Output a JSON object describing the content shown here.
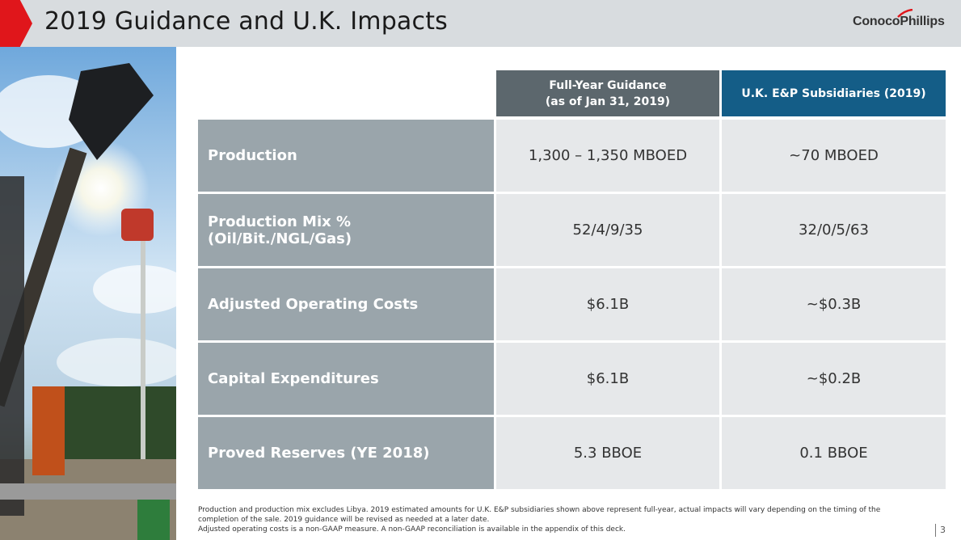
{
  "slide": {
    "title": "2019 Guidance and U.K. Impacts",
    "logo": "ConocoPhillips",
    "page_number": "3"
  },
  "table": {
    "headers": {
      "col1_line1": "Full-Year Guidance",
      "col1_line2": "(as of Jan 31, 2019)",
      "col2": "U.K. E&P Subsidiaries (2019)"
    },
    "rows": [
      {
        "label": "Production",
        "guidance": "1,300 – 1,350 MBOED",
        "uk": "~70 MBOED"
      },
      {
        "label": "Production Mix % (Oil/Bit./NGL/Gas)",
        "guidance": "52/4/9/35",
        "uk": "32/0/5/63"
      },
      {
        "label": "Adjusted Operating Costs",
        "guidance": "$6.1B",
        "uk": "~$0.3B"
      },
      {
        "label": "Capital Expenditures",
        "guidance": "$6.1B",
        "uk": "~$0.2B"
      },
      {
        "label": "Proved Reserves (YE 2018)",
        "guidance": "5.3 BBOE",
        "uk": "0.1 BBOE"
      }
    ]
  },
  "footnotes": {
    "line1": "Production and production mix excludes Libya. 2019 estimated amounts for U.K. E&P subsidiaries shown above represent full-year, actual impacts will vary depending on the timing of the completion of the sale. 2019 guidance will be revised as needed at a later date.",
    "line2": "Adjusted operating costs is a non-GAAP measure. A non-GAAP reconciliation is available in the appendix of this deck."
  },
  "colors": {
    "accent_red": "#e0161b",
    "header_gray": "#5c676d",
    "header_blue": "#145d87",
    "label_gray": "#9aa5ab",
    "cell_bg": "#e6e8ea"
  }
}
